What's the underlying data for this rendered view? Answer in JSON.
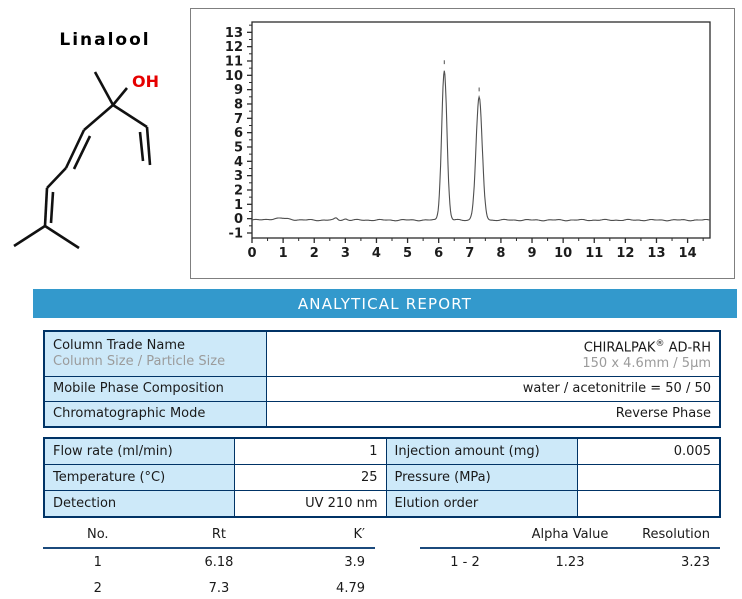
{
  "molecule": {
    "title": "Linalool",
    "hydroxyl_label": "OH",
    "accent_color": "#e60000"
  },
  "chart_data": {
    "type": "line",
    "title": "",
    "xlabel": "",
    "ylabel": "",
    "xlim": [
      0,
      14.72
    ],
    "ylim": [
      -1.35,
      13.72
    ],
    "xticks": [
      0,
      1,
      2,
      3,
      4,
      5,
      6,
      7,
      8,
      9,
      10,
      11,
      12,
      13,
      14
    ],
    "yticks": [
      -1,
      0,
      1,
      2,
      3,
      4,
      5,
      6,
      7,
      8,
      9,
      10,
      11,
      12,
      13
    ],
    "grid": false,
    "baseline": -0.1,
    "peaks": [
      {
        "rt": 6.18,
        "height": 10.45,
        "sigma": 0.085
      },
      {
        "rt": 7.3,
        "height": 8.55,
        "sigma": 0.1
      }
    ],
    "minor_disturbances": [
      {
        "rt": 0.9,
        "height": 0.12,
        "sigma": 0.3
      },
      {
        "rt": 2.7,
        "height": 0.13,
        "sigma": 0.05
      },
      {
        "rt": 3.0,
        "height": 0.08,
        "sigma": 0.06
      }
    ],
    "line_color": "#4f4f4f",
    "axis_color": "#2b2b2b"
  },
  "banner": {
    "title": "ANALYTICAL REPORT",
    "bg_color": "#3399cc",
    "text_color": "#ffffff"
  },
  "column_table": {
    "row1": {
      "label": "Column Trade Name",
      "sublabel": "Column Size / Particle Size",
      "value_pre": "CHIRALPAK",
      "value_sup": "®",
      "value_post": " AD-RH",
      "subvalue": "150 x 4.6mm / 5µm"
    },
    "row2": {
      "label": "Mobile Phase Composition",
      "value": "water / acetonitrile = 50 / 50"
    },
    "row3": {
      "label": "Chromatographic Mode",
      "value": "Reverse Phase"
    }
  },
  "conditions_table": {
    "rows": [
      {
        "label1": "Flow rate (ml/min)",
        "value1": "1",
        "label2": "Injection amount (mg)",
        "value2": "0.005"
      },
      {
        "label1": "Temperature (°C)",
        "value1": "25",
        "label2": "Pressure (MPa)",
        "value2": ""
      },
      {
        "label1": "Detection",
        "value1": "UV 210 nm",
        "label2": "Elution order",
        "value2": ""
      }
    ]
  },
  "results_left": {
    "headers": [
      "No.",
      "Rt",
      "K′"
    ],
    "rows": [
      [
        "1",
        "6.18",
        "3.9"
      ],
      [
        "2",
        "7.3",
        "4.79"
      ]
    ]
  },
  "results_right": {
    "headers": [
      "",
      "Alpha Value",
      "Resolution"
    ],
    "rows": [
      [
        "1 - 2",
        "1.23",
        "3.23"
      ]
    ]
  },
  "colors": {
    "cell_blue": "#cde9f9",
    "border_navy": "#003366",
    "underline_navy": "#1b4a7c",
    "secondary_text": "#9b9b9b"
  }
}
